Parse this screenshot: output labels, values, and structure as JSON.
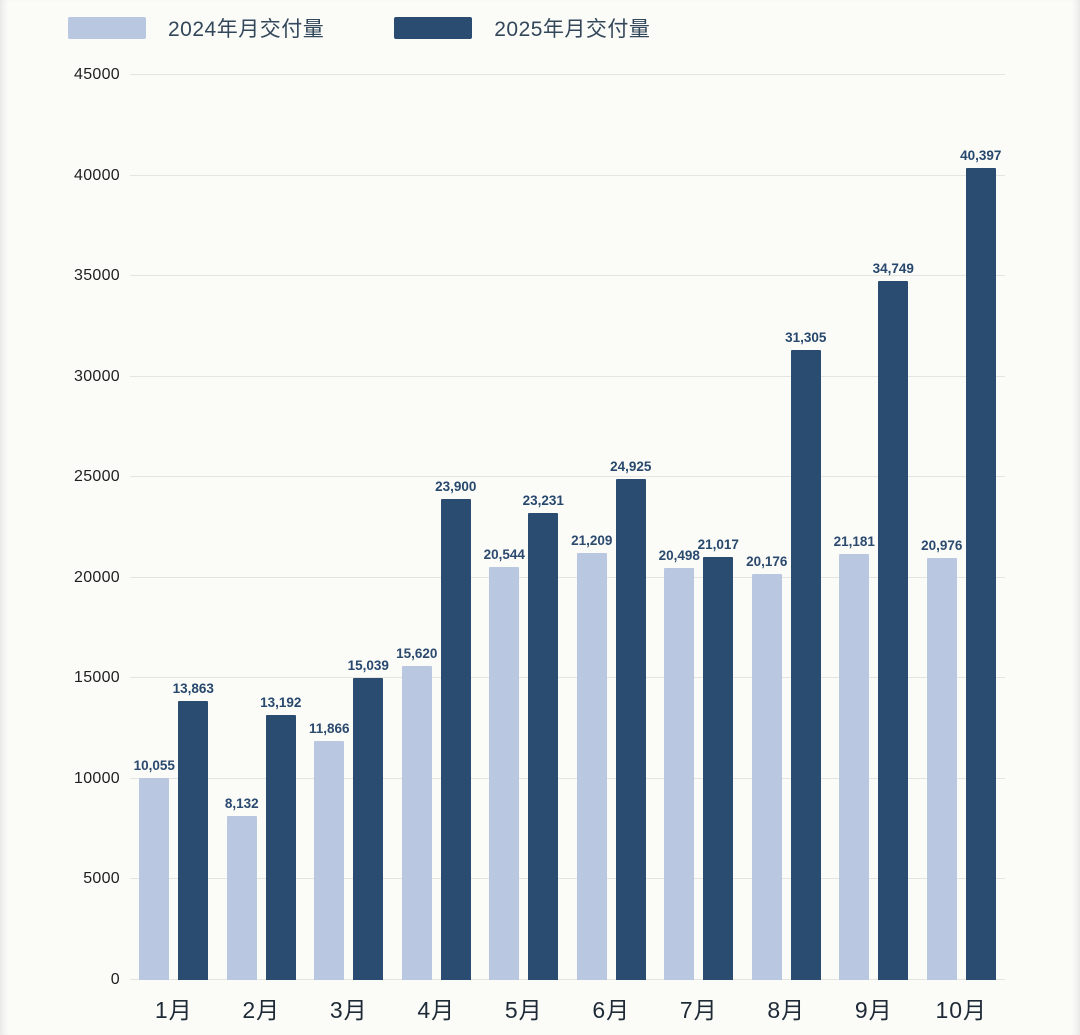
{
  "chart_data": {
    "type": "bar",
    "title": "",
    "xlabel": "",
    "ylabel": "",
    "categories": [
      "1月",
      "2月",
      "3月",
      "4月",
      "5月",
      "6月",
      "7月",
      "8月",
      "9月",
      "10月"
    ],
    "series": [
      {
        "name": "2024年月交付量",
        "color": "#b9c8e0",
        "values": [
          10055,
          8132,
          11866,
          15620,
          20544,
          21209,
          20498,
          20176,
          21181,
          20976
        ]
      },
      {
        "name": "2025年月交付量",
        "color": "#2b4c71",
        "values": [
          13863,
          13192,
          15039,
          23900,
          23231,
          24925,
          21017,
          31305,
          34749,
          40397
        ]
      }
    ],
    "ylim": [
      0,
      45000
    ],
    "yticks": [
      0,
      5000,
      10000,
      15000,
      20000,
      25000,
      30000,
      35000,
      40000,
      45000
    ],
    "grid": true,
    "legend_position": "top-left",
    "value_labels": true
  },
  "colors": {
    "background": "#fbfbf8",
    "gridline": "#e4e4e2",
    "label_text": "#2b4a6e",
    "axis_text": "#1f2a37"
  }
}
